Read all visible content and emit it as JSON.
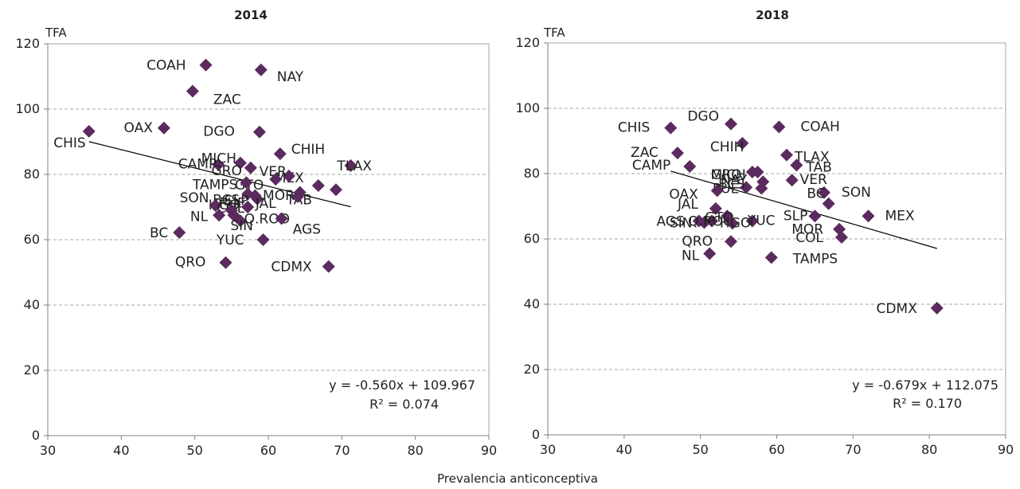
{
  "figure": {
    "xlabel": "Prevalencia anticonceptiva"
  },
  "colors": {
    "marker": "#5b2a5e",
    "grid": "#a6a6a6",
    "axis": "#7f7f7f",
    "text": "#222222",
    "trend": "#000000"
  },
  "chart_data": [
    {
      "type": "scatter",
      "title": "2014",
      "ylabel": "TFA",
      "xlim": [
        30,
        90
      ],
      "ylim": [
        0,
        120
      ],
      "xticks": [
        30,
        40,
        50,
        60,
        70,
        80,
        90
      ],
      "yticks": [
        0,
        20,
        40,
        60,
        80,
        100,
        120
      ],
      "grid": true,
      "equation": "y = -0.560x + 109.967",
      "r2": "R² = 0.074",
      "trendline": {
        "slope": -0.56,
        "intercept": 109.967,
        "x_range": [
          35.6,
          71.2
        ]
      },
      "points": [
        {
          "label": "COAH",
          "x": 51.5,
          "y": 113.5
        },
        {
          "label": "NAY",
          "x": 59.0,
          "y": 112.0
        },
        {
          "label": "ZAC",
          "x": 49.7,
          "y": 105.5
        },
        {
          "label": "OAX",
          "x": 45.8,
          "y": 94.2
        },
        {
          "label": "DGO",
          "x": 58.8,
          "y": 93.0
        },
        {
          "label": "CHIS",
          "x": 35.6,
          "y": 93.2
        },
        {
          "label": "CHIH",
          "x": 61.6,
          "y": 86.3
        },
        {
          "label": "TLAX",
          "x": 71.2,
          "y": 82.7
        },
        {
          "label": "MEX",
          "x": 66.8,
          "y": 76.6
        },
        {
          "label": "CAMP",
          "x": 53.2,
          "y": 83.0
        },
        {
          "label": "MICH",
          "x": 56.2,
          "y": 83.5
        },
        {
          "label": "GRO",
          "x": 57.6,
          "y": 82.0
        },
        {
          "label": "VER",
          "x": 62.8,
          "y": 79.5
        },
        {
          "label": "GTO",
          "x": 61.0,
          "y": 78.5
        },
        {
          "label": "TAMPS",
          "x": 57.0,
          "y": 77.5
        },
        {
          "label": "TAB",
          "x": 69.2,
          "y": 75.3
        },
        {
          "label": "PUE",
          "x": 64.3,
          "y": 74.5
        },
        {
          "label": "BCS",
          "x": 57.2,
          "y": 74.0
        },
        {
          "label": "SLP",
          "x": 58.2,
          "y": 73.5
        },
        {
          "label": "MOR",
          "x": 64.0,
          "y": 73.2
        },
        {
          "label": "HGO",
          "x": 58.5,
          "y": 72.5
        },
        {
          "label": "SON",
          "x": 52.8,
          "y": 70.5
        },
        {
          "label": "COL",
          "x": 57.2,
          "y": 70.0
        },
        {
          "label": "NL",
          "x": 53.3,
          "y": 67.5
        },
        {
          "label": "JAL",
          "x": 55.0,
          "y": 69.0
        },
        {
          "label": "Q.ROO",
          "x": 55.3,
          "y": 67.5
        },
        {
          "label": "AGS",
          "x": 61.8,
          "y": 66.5
        },
        {
          "label": "BC",
          "x": 47.9,
          "y": 62.2
        },
        {
          "label": "SIN",
          "x": 56.2,
          "y": 65.8
        },
        {
          "label": "YUC",
          "x": 59.3,
          "y": 60.0
        },
        {
          "label": "QRO",
          "x": 54.2,
          "y": 53.0
        },
        {
          "label": "CDMX",
          "x": 68.2,
          "y": 51.8
        }
      ]
    },
    {
      "type": "scatter",
      "title": "2018",
      "ylabel": "TFA",
      "xlim": [
        30,
        90
      ],
      "ylim": [
        0,
        120
      ],
      "xticks": [
        30,
        40,
        50,
        60,
        70,
        80,
        90
      ],
      "yticks": [
        0,
        20,
        40,
        60,
        80,
        100,
        120
      ],
      "grid": true,
      "equation": "y = -0.679x + 112.075",
      "r2": "R² = 0.170",
      "trendline": {
        "slope": -0.679,
        "intercept": 112.075,
        "x_range": [
          46.1,
          81.0
        ]
      },
      "points": [
        {
          "label": "CHIS",
          "x": 46.1,
          "y": 94.0
        },
        {
          "label": "DGO",
          "x": 54.0,
          "y": 95.2
        },
        {
          "label": "COAH",
          "x": 60.3,
          "y": 94.3
        },
        {
          "label": "CHIH",
          "x": 55.5,
          "y": 89.3
        },
        {
          "label": "ZAC",
          "x": 47.0,
          "y": 86.3
        },
        {
          "label": "TLAX",
          "x": 61.3,
          "y": 85.7
        },
        {
          "label": "TAB",
          "x": 62.6,
          "y": 82.6
        },
        {
          "label": "CAMP",
          "x": 48.6,
          "y": 82.2
        },
        {
          "label": "MICH",
          "x": 56.8,
          "y": 80.5
        },
        {
          "label": "GRO",
          "x": 57.5,
          "y": 80.5
        },
        {
          "label": "NAY",
          "x": 58.2,
          "y": 77.5
        },
        {
          "label": "VER",
          "x": 62.0,
          "y": 78.0
        },
        {
          "label": "PUE",
          "x": 58.0,
          "y": 75.5
        },
        {
          "label": "BCS",
          "x": 56.0,
          "y": 75.8
        },
        {
          "label": "OAX",
          "x": 52.2,
          "y": 74.8
        },
        {
          "label": "SON",
          "x": 66.2,
          "y": 74.2
        },
        {
          "label": "BC",
          "x": 66.8,
          "y": 70.8
        },
        {
          "label": "MEX",
          "x": 72.0,
          "y": 67.0
        },
        {
          "label": "JAL",
          "x": 52.0,
          "y": 69.3
        },
        {
          "label": "YUC",
          "x": 56.8,
          "y": 65.5
        },
        {
          "label": "SLP",
          "x": 65.0,
          "y": 67.0
        },
        {
          "label": "AGS",
          "x": 49.8,
          "y": 65.5
        },
        {
          "label": "SIN",
          "x": 50.5,
          "y": 65.0
        },
        {
          "label": "Q.ROO",
          "x": 51.5,
          "y": 65.5
        },
        {
          "label": "GTO",
          "x": 53.5,
          "y": 67.0
        },
        {
          "label": "HGO",
          "x": 54.2,
          "y": 64.8
        },
        {
          "label": "MOR",
          "x": 68.2,
          "y": 63.0
        },
        {
          "label": "COL",
          "x": 68.5,
          "y": 60.5
        },
        {
          "label": "QRO",
          "x": 54.0,
          "y": 59.2
        },
        {
          "label": "NL",
          "x": 51.2,
          "y": 55.5
        },
        {
          "label": "TAMPS",
          "x": 59.3,
          "y": 54.3
        },
        {
          "label": "CDMX",
          "x": 81.0,
          "y": 38.8
        }
      ]
    }
  ]
}
